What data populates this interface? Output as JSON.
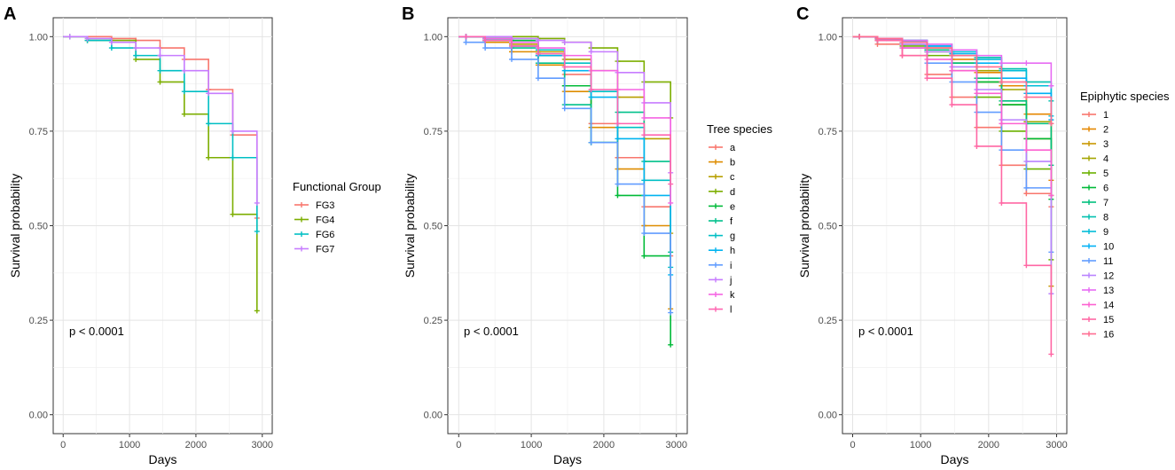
{
  "chart_data": [
    {
      "type": "line",
      "panel": "A",
      "xlabel": "Days",
      "ylabel": "Survival probability",
      "xlim": [
        -150,
        3150
      ],
      "ylim": [
        -0.05,
        1.05
      ],
      "xticks": [
        0,
        1000,
        2000,
        3000
      ],
      "xtick_labels": [
        "0",
        "1000",
        "2000",
        "3000"
      ],
      "yticks": [
        0,
        0.25,
        0.5,
        0.75,
        1.0
      ],
      "ytick_labels": [
        "0.00",
        "0.25",
        "0.50",
        "0.75",
        "1.00"
      ],
      "annotation": "p < 0.0001",
      "legend_title": "Functional Group",
      "series": [
        {
          "name": "FG3",
          "color": "#F8766D",
          "x": [
            0,
            730,
            1095,
            1460,
            1825,
            2190,
            2555,
            2920
          ],
          "y": [
            1.0,
            0.995,
            0.99,
            0.97,
            0.94,
            0.86,
            0.74,
            0.52
          ]
        },
        {
          "name": "FG4",
          "color": "#7CAE00",
          "x": [
            0,
            365,
            1095,
            1460,
            1825,
            2190,
            2555,
            2920
          ],
          "y": [
            1.0,
            0.99,
            0.94,
            0.88,
            0.795,
            0.68,
            0.53,
            0.275
          ]
        },
        {
          "name": "FG6",
          "color": "#00BFC4",
          "x": [
            0,
            365,
            730,
            1095,
            1460,
            1825,
            2190,
            2555,
            2920
          ],
          "y": [
            1.0,
            0.99,
            0.97,
            0.95,
            0.91,
            0.855,
            0.77,
            0.68,
            0.485
          ]
        },
        {
          "name": "FG7",
          "color": "#C77CFF",
          "x": [
            0,
            365,
            730,
            1095,
            1460,
            1825,
            2190,
            2555,
            2920
          ],
          "y": [
            1.0,
            0.995,
            0.985,
            0.97,
            0.95,
            0.91,
            0.85,
            0.75,
            0.56
          ]
        }
      ]
    },
    {
      "type": "line",
      "panel": "B",
      "xlabel": "Days",
      "ylabel": "Survival probability",
      "xlim": [
        -150,
        3150
      ],
      "ylim": [
        -0.05,
        1.05
      ],
      "xticks": [
        0,
        1000,
        2000,
        3000
      ],
      "xtick_labels": [
        "0",
        "1000",
        "2000",
        "3000"
      ],
      "yticks": [
        0,
        0.25,
        0.5,
        0.75,
        1.0
      ],
      "ytick_labels": [
        "0.00",
        "0.25",
        "0.50",
        "0.75",
        "1.00"
      ],
      "annotation": "p < 0.0001",
      "legend_title": "Tree species",
      "series": [
        {
          "name": "a",
          "color": "#F8766D",
          "x": [
            0,
            365,
            730,
            1095,
            1460,
            1825,
            2190,
            2555,
            2920
          ],
          "y": [
            1.0,
            0.99,
            0.975,
            0.95,
            0.9,
            0.77,
            0.68,
            0.55,
            0.42
          ]
        },
        {
          "name": "b",
          "color": "#DE8C00",
          "x": [
            0,
            365,
            730,
            1095,
            1460,
            1825,
            2190,
            2555,
            2920
          ],
          "y": [
            1.0,
            0.985,
            0.96,
            0.925,
            0.855,
            0.76,
            0.65,
            0.5,
            0.28
          ]
        },
        {
          "name": "c",
          "color": "#B79F00",
          "x": [
            0,
            365,
            730,
            1095,
            1460,
            1825,
            2190,
            2555,
            2920
          ],
          "y": [
            1.0,
            0.99,
            0.98,
            0.96,
            0.94,
            0.91,
            0.84,
            0.73,
            0.48
          ]
        },
        {
          "name": "d",
          "color": "#7CAE00",
          "x": [
            0,
            1095,
            1460,
            1825,
            2190,
            2555,
            2920
          ],
          "y": [
            1.0,
            0.995,
            0.985,
            0.97,
            0.935,
            0.88,
            0.785
          ]
        },
        {
          "name": "e",
          "color": "#00BA38",
          "x": [
            0,
            730,
            1095,
            1460,
            1825,
            2190,
            2555,
            2920
          ],
          "y": [
            1.0,
            0.99,
            0.95,
            0.87,
            0.72,
            0.58,
            0.42,
            0.185
          ]
        },
        {
          "name": "f",
          "color": "#00C08B",
          "x": [
            0,
            365,
            730,
            1095,
            1460,
            1825,
            2190,
            2555,
            2920
          ],
          "y": [
            1.0,
            0.99,
            0.97,
            0.93,
            0.82,
            0.72,
            0.8,
            0.67,
            0.43
          ]
        },
        {
          "name": "g",
          "color": "#00BFC4",
          "x": [
            0,
            365,
            730,
            1095,
            1460,
            1825,
            2190,
            2555,
            2920
          ],
          "y": [
            1.0,
            0.995,
            0.985,
            0.965,
            0.93,
            0.855,
            0.76,
            0.62,
            0.39
          ]
        },
        {
          "name": "h",
          "color": "#00B4F0",
          "x": [
            0,
            365,
            730,
            1095,
            1460,
            1825,
            2190,
            2555,
            2920
          ],
          "y": [
            1.0,
            0.99,
            0.975,
            0.95,
            0.91,
            0.84,
            0.73,
            0.58,
            0.37
          ]
        },
        {
          "name": "i",
          "color": "#619CFF",
          "x": [
            0,
            100,
            365,
            730,
            1095,
            1460,
            1825,
            2190,
            2555,
            2920
          ],
          "y": [
            1.0,
            0.985,
            0.97,
            0.94,
            0.89,
            0.81,
            0.72,
            0.61,
            0.48,
            0.27
          ]
        },
        {
          "name": "j",
          "color": "#C77CFF",
          "x": [
            0,
            730,
            1095,
            1460,
            1825,
            2190,
            2555,
            2920
          ],
          "y": [
            1.0,
            0.995,
            0.99,
            0.985,
            0.96,
            0.905,
            0.825,
            0.64
          ]
        },
        {
          "name": "k",
          "color": "#F564E3",
          "x": [
            0,
            365,
            730,
            1095,
            1460,
            1825,
            2190,
            2555,
            2920
          ],
          "y": [
            1.0,
            0.995,
            0.985,
            0.97,
            0.95,
            0.91,
            0.86,
            0.785,
            0.56
          ]
        },
        {
          "name": "l",
          "color": "#FF64B0",
          "x": [
            0,
            365,
            730,
            1095,
            1460,
            1825,
            2190,
            2555,
            2920
          ],
          "y": [
            1.0,
            0.99,
            0.975,
            0.955,
            0.92,
            0.86,
            0.77,
            0.74,
            0.61
          ]
        }
      ]
    },
    {
      "type": "line",
      "panel": "C",
      "xlabel": "Days",
      "ylabel": "Survival probability",
      "xlim": [
        -150,
        3150
      ],
      "ylim": [
        -0.05,
        1.05
      ],
      "xticks": [
        0,
        1000,
        2000,
        3000
      ],
      "xtick_labels": [
        "0",
        "1000",
        "2000",
        "3000"
      ],
      "yticks": [
        0,
        0.25,
        0.5,
        0.75,
        1.0
      ],
      "ytick_labels": [
        "0.00",
        "0.25",
        "0.50",
        "0.75",
        "1.00"
      ],
      "annotation": "p < 0.0001",
      "legend_title": "Epiphytic species",
      "series": [
        {
          "name": "1",
          "color": "#F8766D",
          "x": [
            0,
            365,
            730,
            1095,
            1460,
            1825,
            2190,
            2555,
            2920
          ],
          "y": [
            1.0,
            0.98,
            0.95,
            0.9,
            0.84,
            0.76,
            0.66,
            0.585,
            0.55
          ]
        },
        {
          "name": "2",
          "color": "#E58700",
          "x": [
            0,
            365,
            730,
            1095,
            1460,
            1825,
            2190,
            2555,
            2920
          ],
          "y": [
            1.0,
            0.995,
            0.985,
            0.965,
            0.94,
            0.905,
            0.87,
            0.795,
            0.62
          ]
        },
        {
          "name": "3",
          "color": "#C99800",
          "x": [
            0,
            365,
            730,
            1095,
            1460,
            1825,
            2190,
            2555,
            2920
          ],
          "y": [
            1.0,
            0.99,
            0.98,
            0.96,
            0.93,
            0.88,
            0.82,
            0.73,
            0.34
          ]
        },
        {
          "name": "4",
          "color": "#A3A500",
          "x": [
            0,
            365,
            730,
            1095,
            1460,
            1825,
            2190,
            2555,
            2920
          ],
          "y": [
            1.0,
            0.995,
            0.985,
            0.97,
            0.95,
            0.91,
            0.86,
            0.775,
            0.58
          ]
        },
        {
          "name": "5",
          "color": "#6BB100",
          "x": [
            0,
            365,
            730,
            1095,
            1460,
            1825,
            2190,
            2555,
            2920
          ],
          "y": [
            1.0,
            0.99,
            0.975,
            0.95,
            0.91,
            0.84,
            0.75,
            0.65,
            0.41
          ]
        },
        {
          "name": "6",
          "color": "#00BA38",
          "x": [
            0,
            365,
            730,
            1095,
            1460,
            1825,
            2190,
            2555,
            2920
          ],
          "y": [
            1.0,
            0.99,
            0.98,
            0.96,
            0.93,
            0.88,
            0.82,
            0.73,
            0.57
          ]
        },
        {
          "name": "7",
          "color": "#00BF7D",
          "x": [
            0,
            365,
            730,
            1095,
            1460,
            1825,
            2190,
            2555,
            2920
          ],
          "y": [
            1.0,
            0.995,
            0.985,
            0.965,
            0.93,
            0.89,
            0.83,
            0.77,
            0.66
          ]
        },
        {
          "name": "8",
          "color": "#00C0AF",
          "x": [
            0,
            365,
            730,
            1095,
            1460,
            1825,
            2190,
            2555,
            2920
          ],
          "y": [
            1.0,
            0.995,
            0.99,
            0.98,
            0.965,
            0.945,
            0.915,
            0.88,
            0.83
          ]
        },
        {
          "name": "9",
          "color": "#00BCD8",
          "x": [
            0,
            365,
            730,
            1095,
            1460,
            1825,
            2190,
            2555,
            2920
          ],
          "y": [
            1.0,
            0.995,
            0.99,
            0.975,
            0.96,
            0.94,
            0.91,
            0.87,
            0.79
          ]
        },
        {
          "name": "10",
          "color": "#00B0F6",
          "x": [
            0,
            365,
            730,
            1095,
            1460,
            1825,
            2190,
            2555,
            2920
          ],
          "y": [
            1.0,
            0.995,
            0.985,
            0.975,
            0.955,
            0.93,
            0.89,
            0.85,
            0.78
          ]
        },
        {
          "name": "11",
          "color": "#619CFF",
          "x": [
            0,
            365,
            730,
            1095,
            1460,
            1825,
            2190,
            2555,
            2920
          ],
          "y": [
            1.0,
            0.99,
            0.97,
            0.93,
            0.88,
            0.8,
            0.7,
            0.6,
            0.43
          ]
        },
        {
          "name": "12",
          "color": "#B983FF",
          "x": [
            0,
            365,
            730,
            1095,
            1460,
            1825,
            2190,
            2555,
            2920
          ],
          "y": [
            1.0,
            0.995,
            0.98,
            0.96,
            0.92,
            0.86,
            0.78,
            0.67,
            0.32
          ]
        },
        {
          "name": "13",
          "color": "#E76BF3",
          "x": [
            0,
            365,
            730,
            1095,
            1460,
            1825,
            2190,
            2555,
            2920
          ],
          "y": [
            1.0,
            0.995,
            0.99,
            0.98,
            0.965,
            0.95,
            0.93,
            0.93,
            0.87
          ]
        },
        {
          "name": "14",
          "color": "#FD61D1",
          "x": [
            0,
            365,
            730,
            1095,
            1460,
            1825,
            2190,
            2555,
            2920
          ],
          "y": [
            1.0,
            0.99,
            0.97,
            0.94,
            0.91,
            0.85,
            0.77,
            0.7,
            0.58
          ]
        },
        {
          "name": "15",
          "color": "#FF67A4",
          "x": [
            0,
            365,
            730,
            1095,
            1460,
            1825,
            2190,
            2555,
            2920
          ],
          "y": [
            1.0,
            0.99,
            0.95,
            0.89,
            0.82,
            0.71,
            0.56,
            0.395,
            0.16
          ]
        },
        {
          "name": "16",
          "color": "#FF6C91",
          "x": [
            0,
            365,
            730,
            1095,
            1460,
            1825,
            2190,
            2555,
            2920
          ],
          "y": [
            1.0,
            0.995,
            0.985,
            0.97,
            0.95,
            0.92,
            0.88,
            0.84,
            0.77
          ]
        }
      ]
    }
  ]
}
